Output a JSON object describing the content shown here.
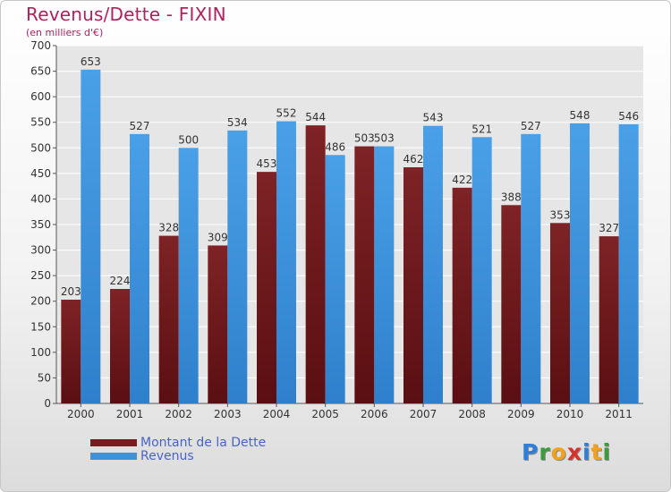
{
  "title": "Revenus/Dette - FIXIN",
  "subtitle": "(en milliers d'€)",
  "logo": {
    "letters": [
      {
        "char": "P",
        "color": "#2f7fd8"
      },
      {
        "char": "r",
        "color": "#3c9b3c"
      },
      {
        "char": "o",
        "color": "#f0a21c"
      },
      {
        "char": "x",
        "color": "#d8312a"
      },
      {
        "char": "i",
        "color": "#2f7fd8"
      },
      {
        "char": "t",
        "color": "#f0a21c"
      },
      {
        "char": "i",
        "color": "#3c9b3c"
      }
    ]
  },
  "chart_data": {
    "type": "bar",
    "title": "Revenus/Dette - FIXIN",
    "ylabel": "(en milliers d'€)",
    "xlabel": "",
    "ylim": [
      0,
      700
    ],
    "yticks": [
      0,
      50,
      100,
      150,
      200,
      250,
      300,
      350,
      400,
      450,
      500,
      550,
      600,
      650,
      700
    ],
    "grid": true,
    "legend_position": "bottom-left",
    "categories": [
      "2000",
      "2001",
      "2002",
      "2003",
      "2004",
      "2005",
      "2006",
      "2007",
      "2008",
      "2009",
      "2010",
      "2011"
    ],
    "series": [
      {
        "name": "Montant de la Dette",
        "color": "#7a1a1f",
        "values": [
          203,
          224,
          328,
          309,
          453,
          544,
          503,
          462,
          422,
          388,
          353,
          327
        ]
      },
      {
        "name": "Revenus",
        "color": "#3d92dc",
        "values": [
          653,
          527,
          500,
          534,
          552,
          486,
          503,
          543,
          521,
          527,
          548,
          546
        ]
      }
    ]
  }
}
